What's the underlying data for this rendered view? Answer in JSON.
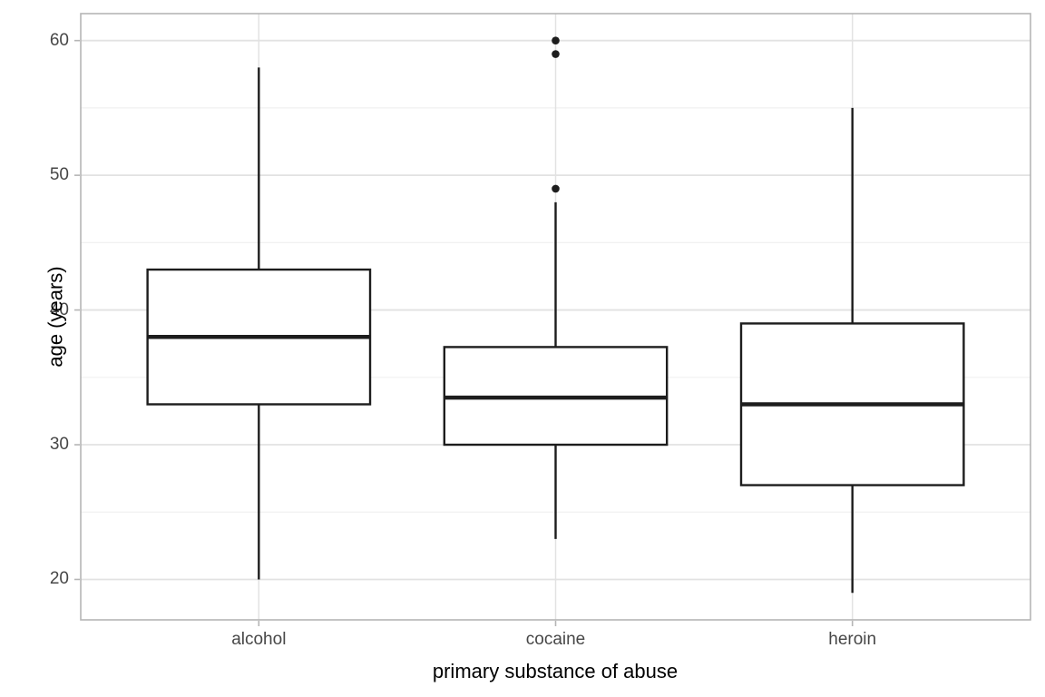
{
  "chart_data": {
    "type": "boxplot",
    "title": "",
    "xlabel": "primary substance of abuse",
    "ylabel": "age (years)",
    "categories": [
      "alcohol",
      "cocaine",
      "heroin"
    ],
    "series": [
      {
        "name": "alcohol",
        "whisker_low": 20,
        "q1": 33,
        "median": 38,
        "q3": 43,
        "whisker_high": 58,
        "outliers": []
      },
      {
        "name": "cocaine",
        "whisker_low": 23,
        "q1": 30,
        "median": 33.5,
        "q3": 37.25,
        "whisker_high": 48,
        "outliers": [
          49,
          59,
          60
        ]
      },
      {
        "name": "heroin",
        "whisker_low": 19,
        "q1": 27,
        "median": 33,
        "q3": 39,
        "whisker_high": 55,
        "outliers": []
      }
    ],
    "y_major_ticks": [
      20,
      30,
      40,
      50,
      60
    ],
    "y_minor_ticks": [
      25,
      35,
      45,
      55
    ],
    "ylim": [
      17,
      62
    ],
    "grid": "horizontal-major-minor plus vertical category lines",
    "legend": "none",
    "colors": {
      "box_stroke": "#1d1d1d",
      "box_fill": "#ffffff",
      "outlier_fill": "#1d1d1d",
      "grid_major": "#e2e2e2",
      "grid_minor": "#f0f0f0",
      "panel_border": "#b5b5b5",
      "tick_mark": "#b5b5b5",
      "tick_label": "#474747",
      "axis_title": "#000000",
      "background": "#ffffff"
    }
  }
}
